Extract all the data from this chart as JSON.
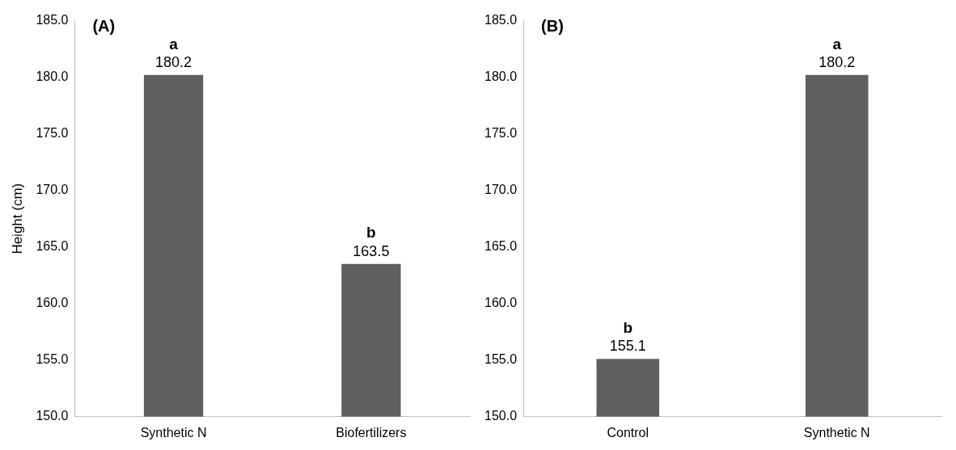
{
  "chart_data": [
    {
      "type": "bar",
      "title": "(A)",
      "ylabel": "Height (cm)",
      "categories": [
        "Synthetic N",
        "Biofertilizers"
      ],
      "values": [
        180.2,
        163.5
      ],
      "color": "#5f5f5f",
      "ylim": [
        150,
        185
      ],
      "yticks": [
        {
          "value": 150,
          "label": "150.0"
        },
        {
          "value": 155,
          "label": "155.0"
        },
        {
          "value": 160,
          "label": "160.0"
        },
        {
          "value": 165,
          "label": "165.0"
        },
        {
          "value": 170,
          "label": "170.0"
        },
        {
          "value": 175,
          "label": "175.0"
        },
        {
          "value": 180,
          "label": "180.0"
        },
        {
          "value": 185,
          "label": "185.0"
        }
      ],
      "grid": false,
      "legend": false,
      "data_labels": true,
      "annotations": [
        {
          "text": "a",
          "x": "Synthetic N",
          "y": 180.2
        },
        {
          "text": "b",
          "x": "Biofertilizers",
          "y": 163.5
        }
      ]
    },
    {
      "type": "bar",
      "title": "(B)",
      "categories": [
        "Control",
        "Synthetic N"
      ],
      "values": [
        155.1,
        180.2
      ],
      "color": "#5f5f5f",
      "ylim": [
        150,
        185
      ],
      "yticks": [
        {
          "value": 150,
          "label": "150.0"
        },
        {
          "value": 155,
          "label": "155.0"
        },
        {
          "value": 160,
          "label": "160.0"
        },
        {
          "value": 165,
          "label": "165.0"
        },
        {
          "value": 170,
          "label": "170.0"
        },
        {
          "value": 175,
          "label": "175.0"
        },
        {
          "value": 180,
          "label": "180.0"
        },
        {
          "value": 185,
          "label": "185.0"
        }
      ],
      "grid": false,
      "legend": false,
      "data_labels": true,
      "annotations": [
        {
          "text": "b",
          "x": "Control",
          "y": 155.1
        },
        {
          "text": "a",
          "x": "Synthetic N",
          "y": 180.2
        }
      ]
    }
  ]
}
